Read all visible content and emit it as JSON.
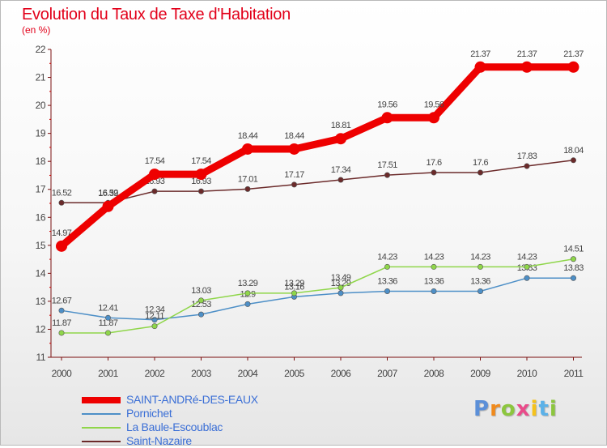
{
  "header": {
    "title": "Evolution du Taux de Taxe d'Habitation",
    "subtitle": "(en %)"
  },
  "brand": {
    "letters": [
      "P",
      "r",
      "o",
      "x",
      "i",
      "t",
      "i"
    ],
    "colors": [
      "#5b8fd8",
      "#f08a1c",
      "#8cc63e",
      "#e94b8a",
      "#f5c21b",
      "#5bb1e8",
      "#8cc63e"
    ]
  },
  "chart_data": {
    "type": "line",
    "title": "Evolution du Taux de Taxe d'Habitation",
    "subtitle": "(en %)",
    "xlabel": "",
    "ylabel": "",
    "x": [
      "2000",
      "2001",
      "2002",
      "2003",
      "2004",
      "2005",
      "2006",
      "2007",
      "2008",
      "2009",
      "2010",
      "2011"
    ],
    "ylim": [
      11,
      22
    ],
    "yticks": [
      11,
      12,
      13,
      14,
      15,
      16,
      17,
      18,
      19,
      20,
      21,
      22
    ],
    "grid": false,
    "legend_position": "bottom-left",
    "series": [
      {
        "name": "SAINT-ANDRé-DES-EAUX",
        "color": "#ee0000",
        "emphasis": true,
        "values": [
          14.97,
          16.39,
          17.54,
          17.54,
          18.44,
          18.44,
          18.81,
          19.56,
          19.56,
          21.37,
          21.37,
          21.37
        ],
        "labels": [
          "14.97",
          "16.39",
          "17.54",
          "17.54",
          "18.44",
          "18.44",
          "18.81",
          "19.56",
          "19.56",
          "21.37",
          "21.37",
          "21.37"
        ]
      },
      {
        "name": "Pornichet",
        "color": "#4d8fc7",
        "emphasis": false,
        "values": [
          12.67,
          12.41,
          12.34,
          12.53,
          12.9,
          13.16,
          13.29,
          13.36,
          13.36,
          13.36,
          13.83,
          13.83
        ],
        "labels": [
          "12.67",
          "12.41",
          "12.34",
          "12.53",
          "12.9",
          "13.16",
          "13.29",
          "13.36",
          "13.36",
          "13.36",
          "13.83",
          "13.83"
        ]
      },
      {
        "name": "La Baule-Escoublac",
        "color": "#8fd64a",
        "emphasis": false,
        "values": [
          11.87,
          11.87,
          12.11,
          13.03,
          13.29,
          13.29,
          13.49,
          14.23,
          14.23,
          14.23,
          14.23,
          14.51
        ],
        "labels": [
          "11.87",
          "11.87",
          "12.11",
          "13.03",
          "13.29",
          "13.29",
          "13.49",
          "14.23",
          "14.23",
          "14.23",
          "14.23",
          "14.51"
        ]
      },
      {
        "name": "Saint-Nazaire",
        "color": "#6b2a2a",
        "emphasis": false,
        "values": [
          16.52,
          16.52,
          16.93,
          16.93,
          17.01,
          17.17,
          17.34,
          17.51,
          17.6,
          17.6,
          17.83,
          18.04
        ],
        "labels": [
          "16.52",
          "16.52",
          "16.93",
          "16.93",
          "17.01",
          "17.17",
          "17.34",
          "17.51",
          "17.6",
          "17.6",
          "17.83",
          "18.04"
        ]
      }
    ]
  }
}
